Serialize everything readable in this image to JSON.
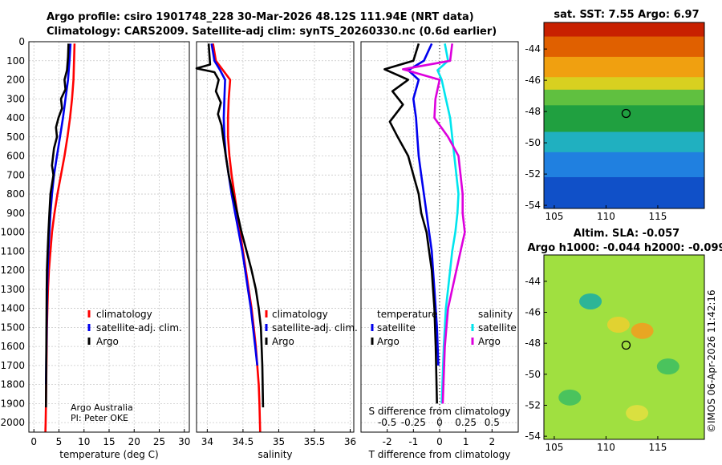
{
  "header": {
    "line1": "Argo profile: csiro 1901748_228 30-Mar-2026 48.12S 111.94E (NRT data)",
    "line2": "Climatology: CARS2009. Satellite-adj clim: synTS_20260330.nc (0.6d earlier)"
  },
  "colors": {
    "climatology": "#ff0000",
    "satellite": "#0000ee",
    "argo": "#000000",
    "satellite_salinity": "#00e5ee",
    "argo_salinity": "#dd00dd",
    "grid": "#c8c8c8"
  },
  "credit": {
    "line1": "Argo Australia",
    "line2": "PI: Peter OKE"
  },
  "watermark": "©IMOS 06-Apr-2026 11:42:16",
  "chart_data": [
    {
      "type": "line",
      "id": "temperature",
      "xlabel": "temperature (deg C)",
      "ylabel": "",
      "xlim": [
        -1,
        31
      ],
      "ylim": [
        2050,
        0
      ],
      "xticks": [
        0,
        5,
        10,
        15,
        20,
        25,
        30
      ],
      "xtick_labels": [
        "0",
        "5",
        "10",
        "15",
        "20",
        "25",
        "30"
      ],
      "yticks": [
        0,
        100,
        200,
        300,
        400,
        500,
        600,
        700,
        800,
        900,
        1000,
        1100,
        1200,
        1300,
        1400,
        1500,
        1600,
        1700,
        1800,
        1900,
        2000
      ],
      "ytick_labels": [
        "0",
        "100",
        "200",
        "300",
        "400",
        "500",
        "600",
        "700",
        "800",
        "900",
        "1000",
        "1100",
        "1200",
        "1300",
        "1400",
        "1500",
        "1600",
        "1700",
        "1800",
        "1900",
        "2000"
      ],
      "legend": [
        "climatology",
        "satellite-adj. clim.",
        "Argo"
      ],
      "series": [
        {
          "name": "climatology",
          "color_key": "climatology",
          "x": [
            8.1,
            8.0,
            7.9,
            7.6,
            7.2,
            6.7,
            6.1,
            5.4,
            4.7,
            4.1,
            3.6,
            3.3,
            3.0,
            2.8,
            2.7,
            2.6,
            2.55,
            2.5,
            2.45,
            2.4,
            2.35,
            2.3
          ],
          "y": [
            10,
            100,
            200,
            300,
            400,
            500,
            600,
            700,
            800,
            900,
            1000,
            1100,
            1200,
            1300,
            1400,
            1500,
            1600,
            1700,
            1800,
            1900,
            2000,
            2050
          ]
        },
        {
          "name": "satellite-adj. clim.",
          "color_key": "satellite",
          "x": [
            7.3,
            7.1,
            6.8,
            6.3,
            5.8,
            5.2,
            4.6,
            4.0,
            3.6,
            3.3,
            3.1,
            2.9,
            2.75,
            2.65,
            2.6,
            2.55,
            2.5,
            2.45,
            2.4
          ],
          "y": [
            10,
            100,
            200,
            300,
            400,
            500,
            600,
            700,
            800,
            900,
            1000,
            1100,
            1200,
            1300,
            1400,
            1500,
            1600,
            1700,
            1800
          ]
        },
        {
          "name": "Argo",
          "color_key": "argo",
          "x": [
            6.9,
            6.8,
            6.6,
            6.1,
            6.3,
            5.4,
            5.6,
            4.9,
            4.4,
            4.6,
            4.0,
            3.6,
            3.9,
            3.3,
            3.1,
            2.9,
            2.75,
            2.6,
            2.55,
            2.5,
            2.45,
            2.4
          ],
          "y": [
            10,
            80,
            150,
            200,
            250,
            300,
            350,
            400,
            450,
            500,
            560,
            650,
            700,
            800,
            900,
            1000,
            1100,
            1200,
            1300,
            1500,
            1700,
            1920
          ]
        }
      ],
      "annotations": [
        "Argo Australia",
        "PI: Peter OKE"
      ]
    },
    {
      "type": "line",
      "id": "salinity",
      "xlabel": "salinity",
      "xlim": [
        33.85,
        36.05
      ],
      "ylim": [
        2050,
        0
      ],
      "xticks": [
        34,
        34.5,
        35,
        35.5,
        36
      ],
      "xtick_labels": [
        "34",
        "34.5",
        "35",
        "35.5",
        "36"
      ],
      "legend": [
        "climatology",
        "satellite-adj. clim.",
        "Argo"
      ],
      "series": [
        {
          "name": "climatology",
          "color_key": "climatology",
          "x": [
            34.08,
            34.12,
            34.22,
            34.32,
            34.3,
            34.29,
            34.29,
            34.31,
            34.34,
            34.38,
            34.42,
            34.46,
            34.5,
            34.54,
            34.58,
            34.62,
            34.65,
            34.68,
            34.7,
            34.72,
            34.73,
            34.74
          ],
          "y": [
            10,
            100,
            150,
            200,
            300,
            400,
            500,
            600,
            700,
            800,
            900,
            1000,
            1100,
            1200,
            1300,
            1400,
            1500,
            1600,
            1700,
            1800,
            1900,
            2050
          ]
        },
        {
          "name": "satellite-adj. clim.",
          "color_key": "satellite",
          "x": [
            34.06,
            34.1,
            34.18,
            34.25,
            34.24,
            34.23,
            34.24,
            34.26,
            34.3,
            34.34,
            34.39,
            34.44,
            34.49,
            34.53,
            34.57,
            34.61,
            34.64,
            34.67,
            34.7
          ],
          "y": [
            10,
            100,
            150,
            200,
            300,
            400,
            500,
            600,
            700,
            800,
            900,
            1000,
            1100,
            1200,
            1300,
            1400,
            1500,
            1600,
            1700
          ]
        },
        {
          "name": "Argo",
          "color_key": "argo",
          "x": [
            34.02,
            34.04,
            33.85,
            34.1,
            34.16,
            34.12,
            34.19,
            34.15,
            34.2,
            34.22,
            34.26,
            34.3,
            34.36,
            34.42,
            34.48,
            34.55,
            34.62,
            34.68,
            34.72,
            34.75,
            34.77,
            34.78
          ],
          "y": [
            10,
            120,
            140,
            160,
            200,
            260,
            320,
            380,
            440,
            500,
            600,
            700,
            800,
            900,
            1000,
            1100,
            1200,
            1300,
            1400,
            1500,
            1700,
            1920
          ]
        }
      ]
    },
    {
      "type": "line",
      "id": "difference",
      "xlabel": "T difference from climatology",
      "top_axis_label": "S difference from climatology",
      "xlim": [
        -3,
        3
      ],
      "ylim": [
        2050,
        0
      ],
      "xticks": [
        -2,
        -1,
        0,
        1,
        2
      ],
      "xtick_labels": [
        "-2",
        "-1",
        "0",
        "1",
        "2"
      ],
      "s_ticks": [
        -0.5,
        -0.25,
        0,
        0.25,
        0.5
      ],
      "s_tick_labels": [
        "-0.5",
        "-0.25",
        "0",
        "0.25",
        "0.5"
      ],
      "s_scale": 0.25,
      "legend_groups": [
        {
          "title": "temperature",
          "entries": [
            "satellite",
            "Argo"
          ]
        },
        {
          "title": "salinity",
          "entries": [
            "satellite",
            "Argo"
          ]
        }
      ],
      "series": [
        {
          "name": "temperature satellite",
          "color_key": "satellite",
          "x": [
            -0.3,
            -0.6,
            -1.2,
            -0.8,
            -1.0,
            -0.9,
            -0.85,
            -0.8,
            -0.7,
            -0.6,
            -0.5,
            -0.4,
            -0.3,
            -0.25,
            -0.2,
            -0.15,
            -0.1,
            -0.05
          ],
          "y": [
            10,
            100,
            150,
            200,
            300,
            400,
            500,
            600,
            700,
            800,
            900,
            1000,
            1100,
            1200,
            1300,
            1400,
            1500,
            1700
          ]
        },
        {
          "name": "temperature Argo",
          "color_key": "argo",
          "x": [
            -0.8,
            -1.0,
            -2.1,
            -1.2,
            -1.8,
            -1.4,
            -1.9,
            -1.6,
            -1.2,
            -1.0,
            -0.8,
            -0.7,
            -0.5,
            -0.4,
            -0.3,
            -0.25,
            -0.2,
            -0.15,
            -0.1
          ],
          "y": [
            10,
            100,
            145,
            200,
            260,
            330,
            420,
            500,
            600,
            700,
            800,
            900,
            1000,
            1100,
            1200,
            1300,
            1400,
            1600,
            1900
          ]
        },
        {
          "name": "salinity satellite",
          "color_key": "satellite_salinity",
          "x": [
            0.05,
            0.08,
            -0.02,
            0.02,
            0.06,
            0.1,
            0.12,
            0.14,
            0.16,
            0.18,
            0.17,
            0.15,
            0.12,
            0.1,
            0.08,
            0.06,
            0.04,
            0.02
          ],
          "y": [
            10,
            100,
            150,
            200,
            300,
            400,
            500,
            600,
            700,
            800,
            900,
            1000,
            1100,
            1200,
            1300,
            1400,
            1600,
            1900
          ]
        },
        {
          "name": "salinity Argo",
          "color_key": "argo_salinity",
          "x": [
            0.12,
            0.1,
            -0.35,
            0.0,
            -0.04,
            -0.05,
            0.08,
            0.18,
            0.2,
            0.22,
            0.22,
            0.24,
            0.2,
            0.16,
            0.12,
            0.08,
            0.05,
            0.03
          ],
          "y": [
            10,
            100,
            145,
            200,
            300,
            400,
            500,
            600,
            700,
            800,
            900,
            1000,
            1100,
            1200,
            1300,
            1400,
            1600,
            1900
          ]
        }
      ]
    },
    {
      "type": "heatmap",
      "id": "sst_map",
      "title": "sat. SST: 7.55 Argo: 6.97",
      "xlim": [
        104,
        119.5
      ],
      "ylim": [
        -54.2,
        -42.3
      ],
      "xticks": [
        105,
        110,
        115
      ],
      "xtick_labels": [
        "105",
        "110",
        "115"
      ],
      "yticks": [
        -44,
        -46,
        -48,
        -50,
        -52,
        -54
      ],
      "ytick_labels": [
        "-44",
        "-46",
        "-48",
        "-50",
        "-52",
        "-54"
      ],
      "profile_lon": 111.94,
      "profile_lat": -48.12,
      "bands": [
        {
          "lat_top": -42.3,
          "lat_bottom": -43.2,
          "color": "#c82000"
        },
        {
          "lat_top": -43.2,
          "lat_bottom": -44.5,
          "color": "#e06000"
        },
        {
          "lat_top": -44.5,
          "lat_bottom": -45.8,
          "color": "#f0a010"
        },
        {
          "lat_top": -45.8,
          "lat_bottom": -46.6,
          "color": "#d8d020"
        },
        {
          "lat_top": -46.6,
          "lat_bottom": -47.6,
          "color": "#60c040"
        },
        {
          "lat_top": -47.6,
          "lat_bottom": -49.3,
          "color": "#20a040"
        },
        {
          "lat_top": -49.3,
          "lat_bottom": -50.6,
          "color": "#20b0c0"
        },
        {
          "lat_top": -50.6,
          "lat_bottom": -52.2,
          "color": "#2080e0"
        },
        {
          "lat_top": -52.2,
          "lat_bottom": -54.2,
          "color": "#1050c8"
        }
      ]
    },
    {
      "type": "heatmap",
      "id": "sla_map",
      "title_line1": "Altim. SLA: -0.057",
      "title_line2": "Argo h1000: -0.044 h2000: -0.099",
      "xlim": [
        104,
        119.5
      ],
      "ylim": [
        -54.2,
        -42.3
      ],
      "xticks": [
        105,
        110,
        115
      ],
      "xtick_labels": [
        "105",
        "110",
        "115"
      ],
      "yticks": [
        -44,
        -46,
        -48,
        -50,
        -52,
        -54
      ],
      "ytick_labels": [
        "-44",
        "-46",
        "-48",
        "-50",
        "-52",
        "-54"
      ],
      "profile_lon": 111.94,
      "profile_lat": -48.12,
      "background_color": "#a0e040",
      "features": [
        {
          "lon": 108.5,
          "lat": -45.3,
          "color": "#20b0a0"
        },
        {
          "lon": 113.5,
          "lat": -47.2,
          "color": "#f0a020"
        },
        {
          "lon": 111.2,
          "lat": -46.8,
          "color": "#e8d030"
        },
        {
          "lon": 116.0,
          "lat": -49.5,
          "color": "#40c060"
        },
        {
          "lon": 106.5,
          "lat": -51.5,
          "color": "#40c060"
        },
        {
          "lon": 113.0,
          "lat": -52.5,
          "color": "#e0e040"
        }
      ]
    }
  ]
}
